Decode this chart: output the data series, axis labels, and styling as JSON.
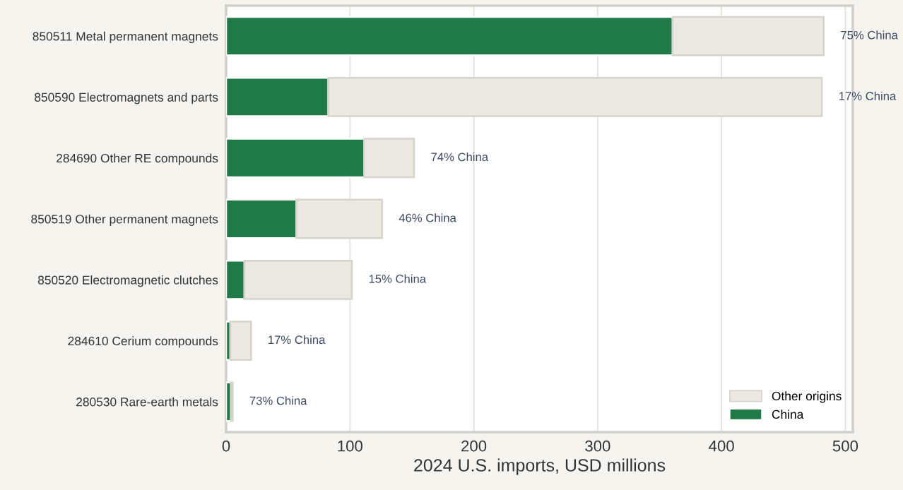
{
  "chart_data": {
    "type": "bar",
    "orientation": "horizontal",
    "stacked": true,
    "categories": [
      "850511 Metal permanent magnets",
      "850590 Electromagnets and parts",
      "284690 Other RE compounds",
      "850519 Other permanent magnets",
      "850520 Electromagnetic clutches",
      "284610 Cerium compounds",
      "280530 Rare-earth metals"
    ],
    "series": [
      {
        "name": "China",
        "color": "#1f7a47",
        "values": [
          360.5,
          82.5,
          111.4,
          56.7,
          14.8,
          3.4,
          3.9
        ]
      },
      {
        "name": "Other origins",
        "color": "#ece9e2",
        "values": [
          122,
          398.5,
          40.3,
          69.2,
          86.7,
          16.7,
          1.4
        ]
      }
    ],
    "xlabel": "2024 U.S. imports, USD millions",
    "xlim": [
      0,
      506
    ],
    "xticks": [
      0,
      100,
      200,
      300,
      400,
      500
    ],
    "grid": "x",
    "legend": "bottom right",
    "annotations": [
      {
        "text": "75% China",
        "x": 482.5,
        "y": "850511 Metal permanent magnets"
      },
      {
        "text": "17% China",
        "x": 481,
        "y": "850590 Electromagnets and parts"
      },
      {
        "text": "74% China",
        "x": 151.7,
        "y": "284690 Other RE compounds"
      },
      {
        "text": "46% China",
        "x": 125.9,
        "y": "850519 Other permanent magnets"
      },
      {
        "text": "15% China",
        "x": 101.5,
        "y": "850520 Electromagnetic clutches"
      },
      {
        "text": "17% China",
        "x": 20.1,
        "y": "284610 Cerium compounds"
      },
      {
        "text": "73% China",
        "x": 5.3,
        "y": "280530 Rare-earth metals"
      }
    ]
  }
}
